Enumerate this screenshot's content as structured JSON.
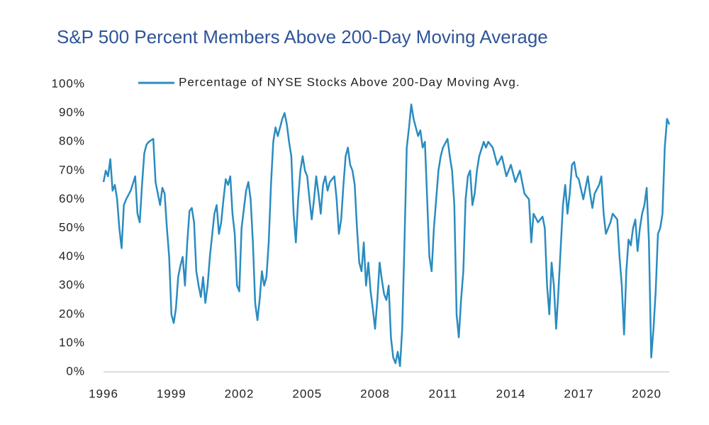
{
  "chart_data": {
    "type": "line",
    "title": "S&P 500 Percent Members Above 200-Day Moving Average",
    "x": [
      1996.0,
      1996.1,
      1996.2,
      1996.3,
      1996.4,
      1996.5,
      1996.6,
      1996.7,
      1996.8,
      1996.9,
      1997.0,
      1997.2,
      1997.4,
      1997.5,
      1997.6,
      1997.7,
      1997.8,
      1997.9,
      1998.0,
      1998.2,
      1998.3,
      1998.4,
      1998.5,
      1998.6,
      1998.7,
      1998.8,
      1998.9,
      1999.0,
      1999.1,
      1999.2,
      1999.3,
      1999.4,
      1999.5,
      1999.6,
      1999.7,
      1999.8,
      1999.9,
      2000.0,
      2000.1,
      2000.2,
      2000.3,
      2000.4,
      2000.5,
      2000.6,
      2000.7,
      2000.9,
      2001.0,
      2001.1,
      2001.2,
      2001.3,
      2001.4,
      2001.5,
      2001.6,
      2001.7,
      2001.8,
      2001.9,
      2002.0,
      2002.1,
      2002.3,
      2002.4,
      2002.5,
      2002.6,
      2002.7,
      2002.8,
      2002.9,
      2003.0,
      2003.1,
      2003.2,
      2003.3,
      2003.4,
      2003.5,
      2003.6,
      2003.7,
      2003.8,
      2003.9,
      2004.0,
      2004.1,
      2004.2,
      2004.3,
      2004.4,
      2004.5,
      2004.6,
      2004.7,
      2004.8,
      2004.9,
      2005.0,
      2005.1,
      2005.2,
      2005.3,
      2005.4,
      2005.5,
      2005.6,
      2005.7,
      2005.8,
      2005.9,
      2006.0,
      2006.2,
      2006.3,
      2006.4,
      2006.5,
      2006.6,
      2006.7,
      2006.8,
      2006.9,
      2007.0,
      2007.1,
      2007.2,
      2007.3,
      2007.4,
      2007.5,
      2007.6,
      2007.7,
      2007.8,
      2007.9,
      2008.0,
      2008.1,
      2008.2,
      2008.3,
      2008.4,
      2008.5,
      2008.6,
      2008.7,
      2008.8,
      2008.9,
      2009.0,
      2009.1,
      2009.2,
      2009.3,
      2009.4,
      2009.5,
      2009.6,
      2009.7,
      2009.8,
      2009.9,
      2010.0,
      2010.1,
      2010.2,
      2010.3,
      2010.4,
      2010.5,
      2010.6,
      2010.7,
      2010.8,
      2010.9,
      2011.0,
      2011.2,
      2011.3,
      2011.4,
      2011.5,
      2011.6,
      2011.7,
      2011.8,
      2011.9,
      2012.0,
      2012.1,
      2012.2,
      2012.3,
      2012.4,
      2012.5,
      2012.6,
      2012.8,
      2012.9,
      2013.0,
      2013.2,
      2013.4,
      2013.6,
      2013.8,
      2014.0,
      2014.2,
      2014.4,
      2014.6,
      2014.8,
      2014.9,
      2015.0,
      2015.2,
      2015.4,
      2015.5,
      2015.6,
      2015.7,
      2015.8,
      2015.9,
      2016.0,
      2016.1,
      2016.3,
      2016.4,
      2016.5,
      2016.6,
      2016.7,
      2016.8,
      2016.9,
      2017.0,
      2017.2,
      2017.4,
      2017.5,
      2017.6,
      2017.7,
      2017.9,
      2018.0,
      2018.1,
      2018.2,
      2018.4,
      2018.5,
      2018.7,
      2018.8,
      2018.9,
      2019.0,
      2019.1,
      2019.2,
      2019.3,
      2019.4,
      2019.5,
      2019.6,
      2019.7,
      2019.8,
      2019.9,
      2020.0,
      2020.1,
      2020.2,
      2020.3,
      2020.4,
      2020.5,
      2020.6,
      2020.7,
      2020.8,
      2020.9,
      2021.0
    ],
    "series": [
      {
        "name": "Percentage of NYSE Stocks Above 200-Day Moving Avg.",
        "color": "#2a8cc0",
        "values": [
          66,
          70,
          68,
          74,
          63,
          65,
          60,
          50,
          43,
          58,
          60,
          63,
          68,
          55,
          52,
          65,
          76,
          79,
          80,
          81,
          66,
          62,
          58,
          64,
          62,
          50,
          40,
          20,
          17,
          22,
          33,
          37,
          40,
          30,
          45,
          56,
          57,
          52,
          35,
          30,
          26,
          33,
          24,
          30,
          40,
          55,
          58,
          48,
          52,
          60,
          67,
          65,
          68,
          55,
          48,
          30,
          28,
          50,
          63,
          66,
          60,
          45,
          24,
          18,
          25,
          35,
          30,
          33,
          45,
          65,
          80,
          85,
          82,
          85,
          88,
          90,
          86,
          80,
          75,
          55,
          45,
          60,
          70,
          75,
          70,
          68,
          60,
          53,
          60,
          68,
          62,
          55,
          65,
          68,
          63,
          66,
          68,
          60,
          48,
          53,
          65,
          75,
          78,
          72,
          70,
          65,
          50,
          38,
          35,
          45,
          30,
          38,
          28,
          22,
          15,
          25,
          38,
          32,
          27,
          25,
          30,
          12,
          5,
          3,
          7,
          2,
          15,
          45,
          78,
          85,
          93,
          88,
          85,
          82,
          84,
          78,
          80,
          60,
          40,
          35,
          50,
          60,
          70,
          75,
          78,
          81,
          75,
          70,
          58,
          20,
          12,
          25,
          35,
          60,
          68,
          70,
          58,
          62,
          70,
          75,
          80,
          78,
          80,
          78,
          72,
          75,
          68,
          72,
          66,
          70,
          62,
          60,
          45,
          55,
          52,
          54,
          50,
          30,
          20,
          38,
          30,
          15,
          28,
          58,
          65,
          55,
          62,
          72,
          73,
          68,
          67,
          60,
          68,
          62,
          57,
          62,
          65,
          68,
          55,
          48,
          52,
          55,
          53,
          40,
          30,
          13,
          35,
          46,
          44,
          50,
          53,
          42,
          50,
          55,
          58,
          64,
          45,
          5,
          15,
          28,
          48,
          50,
          55,
          78,
          88,
          86
        ]
      }
    ],
    "xlim": [
      1996,
      2021
    ],
    "xticks": [
      1996,
      1999,
      2002,
      2005,
      2008,
      2011,
      2014,
      2017,
      2020
    ],
    "ylim": [
      0,
      100
    ],
    "yticks": [
      {
        "value": 0,
        "label": "0%"
      },
      {
        "value": 10,
        "label": "10%"
      },
      {
        "value": 20,
        "label": "20%"
      },
      {
        "value": 30,
        "label": "30%"
      },
      {
        "value": 40,
        "label": "40%"
      },
      {
        "value": 50,
        "label": "50%"
      },
      {
        "value": 60,
        "label": "60%"
      },
      {
        "value": 70,
        "label": "70%"
      },
      {
        "value": 80,
        "label": "80%"
      },
      {
        "value": 90,
        "label": "90%"
      },
      {
        "value": 100,
        "label": "100%"
      }
    ],
    "grid": false
  }
}
